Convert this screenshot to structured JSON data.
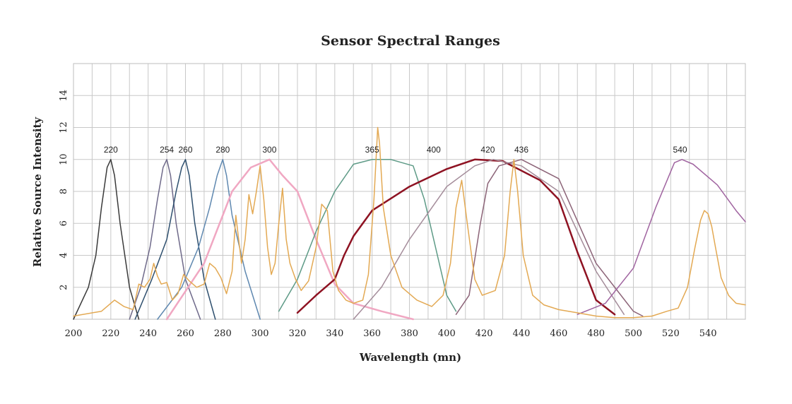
{
  "chart_data": {
    "type": "line",
    "title": "Sensor Spectral Ranges",
    "xlabel": "Wavelength (mn)",
    "ylabel": "Relative Source Intensity",
    "xlim": [
      200,
      560
    ],
    "ylim": [
      0,
      16
    ],
    "grid": true,
    "x_ticks": [
      200,
      220,
      240,
      260,
      280,
      300,
      320,
      340,
      360,
      380,
      400,
      420,
      440,
      460,
      480,
      500,
      520,
      540
    ],
    "y_ticks": [
      2,
      4,
      6,
      8,
      10,
      12,
      14
    ],
    "peak_labels": [
      {
        "text": "220",
        "x": 220
      },
      {
        "text": "254",
        "x": 250
      },
      {
        "text": "260",
        "x": 260
      },
      {
        "text": "280",
        "x": 280
      },
      {
        "text": "300",
        "x": 305
      },
      {
        "text": "365",
        "x": 360
      },
      {
        "text": "400",
        "x": 393
      },
      {
        "text": "420",
        "x": 422
      },
      {
        "text": "436",
        "x": 440
      },
      {
        "text": "540",
        "x": 525
      }
    ],
    "series": [
      {
        "color": "#3a3a3a",
        "width": 1.5,
        "x": [
          200,
          208,
          212,
          215,
          218,
          220,
          222,
          225,
          230,
          235
        ],
        "y": [
          0,
          2,
          4,
          7,
          9.5,
          10,
          9,
          6,
          2,
          0
        ]
      },
      {
        "color": "#6f6a8a",
        "width": 1.5,
        "x": [
          230,
          236,
          241,
          245,
          248,
          250,
          252,
          255,
          260,
          268
        ],
        "y": [
          0,
          2,
          4.5,
          7.5,
          9.5,
          10,
          9,
          6,
          2.5,
          0
        ]
      },
      {
        "color": "#2e4f6e",
        "width": 1.5,
        "x": [
          233,
          242,
          250,
          255,
          258,
          260,
          262,
          265,
          270,
          276
        ],
        "y": [
          0,
          2.5,
          5,
          8,
          9.5,
          10,
          9,
          6,
          2.5,
          0
        ]
      },
      {
        "color": "#5f88b0",
        "width": 1.5,
        "x": [
          245,
          258,
          267,
          273,
          277,
          280,
          282,
          285,
          292,
          300
        ],
        "y": [
          0,
          2,
          4.5,
          7,
          9,
          10,
          9,
          6.5,
          3,
          0
        ]
      },
      {
        "color": "#f0a7c2",
        "width": 2.5,
        "x": [
          250,
          270,
          285,
          295,
          305,
          312,
          320,
          330,
          340,
          350,
          365,
          382
        ],
        "y": [
          0,
          3.5,
          8,
          9.5,
          10,
          9,
          8,
          5,
          2.2,
          1,
          0.5,
          0
        ]
      },
      {
        "color": "#5d9a86",
        "width": 1.5,
        "x": [
          310,
          320,
          330,
          340,
          350,
          360,
          370,
          382,
          388,
          395,
          400,
          405
        ],
        "y": [
          0.5,
          2.5,
          5.5,
          8,
          9.7,
          10,
          10,
          9.6,
          7.5,
          4,
          1.5,
          0.5
        ]
      },
      {
        "color": "#8e1222",
        "width": 2.5,
        "x": [
          320,
          330,
          340,
          345,
          350,
          360,
          380,
          400,
          415,
          430,
          450,
          460,
          470,
          480,
          490
        ],
        "y": [
          0.4,
          1.5,
          2.5,
          4,
          5.2,
          6.8,
          8.3,
          9.4,
          10,
          9.9,
          8.7,
          7.5,
          4.2,
          1.2,
          0.3
        ]
      },
      {
        "color": "#a48c9a",
        "width": 1.5,
        "x": [
          350,
          365,
          380,
          400,
          415,
          425,
          440,
          460,
          480,
          495
        ],
        "y": [
          0,
          2,
          5,
          8.3,
          9.6,
          10,
          9.6,
          8,
          3,
          0.3
        ]
      },
      {
        "color": "#8c6478",
        "width": 1.5,
        "x": [
          405,
          412,
          418,
          422,
          428,
          440,
          460,
          480,
          500,
          505
        ],
        "y": [
          0.3,
          1.5,
          6,
          8.5,
          9.6,
          10,
          8.8,
          3.5,
          0.5,
          0.2
        ]
      },
      {
        "color": "#a064a0",
        "width": 1.5,
        "x": [
          470,
          485,
          500,
          512,
          522,
          526,
          532,
          545,
          555,
          560
        ],
        "y": [
          0.3,
          1,
          3.2,
          7,
          9.8,
          10,
          9.7,
          8.4,
          6.8,
          6.1
        ]
      },
      {
        "color": "#e3a953",
        "width": 1.5,
        "x": [
          200,
          215,
          222,
          227,
          232,
          235,
          238,
          241,
          243,
          245,
          247,
          250,
          253,
          256,
          259,
          262,
          266,
          270,
          273,
          276,
          279,
          282,
          285,
          287,
          290,
          292,
          294,
          296,
          298,
          300,
          302,
          304,
          306,
          308,
          310,
          312,
          314,
          316,
          319,
          322,
          326,
          330,
          333,
          336,
          339,
          342,
          346,
          350,
          355,
          358,
          361,
          363,
          364,
          366,
          370,
          376,
          384,
          392,
          398,
          402,
          405,
          408,
          411,
          415,
          419,
          426,
          431,
          434,
          436,
          438,
          441,
          446,
          452,
          460,
          470,
          480,
          490,
          500,
          510,
          518,
          524,
          529,
          533,
          536,
          538,
          540,
          542,
          544,
          547,
          551,
          555,
          560
        ],
        "y": [
          0.2,
          0.5,
          1.2,
          0.8,
          0.6,
          2.2,
          2,
          2.5,
          3.5,
          2.7,
          2.2,
          2.3,
          1.2,
          1.6,
          2.8,
          2.4,
          2,
          2.2,
          3.5,
          3.2,
          2.6,
          1.6,
          3,
          6.5,
          3.5,
          5,
          7.8,
          6.6,
          8,
          9.6,
          7.5,
          4.5,
          2.8,
          3.5,
          6,
          8.2,
          5,
          3.5,
          2.5,
          1.8,
          2.4,
          4.5,
          7.2,
          6.8,
          3,
          1.8,
          1.2,
          1,
          1.2,
          2.8,
          7.5,
          12,
          11,
          7,
          4,
          2,
          1.2,
          0.8,
          1.5,
          3.5,
          7,
          8.7,
          6,
          2.5,
          1.5,
          1.8,
          4,
          8,
          10,
          8,
          4,
          1.5,
          0.9,
          0.6,
          0.4,
          0.2,
          0.1,
          0.1,
          0.2,
          0.5,
          0.7,
          2,
          4.5,
          6.2,
          6.8,
          6.6,
          5.8,
          4.5,
          2.6,
          1.5,
          1,
          0.9
        ]
      }
    ]
  }
}
